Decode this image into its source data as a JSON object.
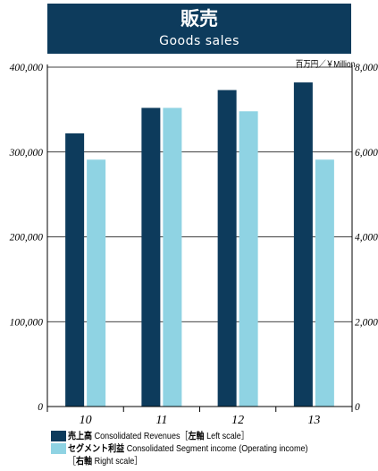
{
  "header": {
    "title": "販売",
    "subtitle": "Goods sales"
  },
  "unit": "百万円／￥Million",
  "chart_data": {
    "type": "bar",
    "categories": [
      "10",
      "11",
      "12",
      "13"
    ],
    "series": [
      {
        "name": "売上高 Consolidated Revenues［左軸 Left scale］",
        "axis": "left",
        "color": "#0d3b5c",
        "values": [
          322000,
          352000,
          373000,
          382000
        ]
      },
      {
        "name": "セグメント利益 Consolidated Segment income (Operating income)［右軸 Right scale］",
        "axis": "right",
        "color": "#8fd3e3",
        "values": [
          5820,
          7040,
          6960,
          5820
        ]
      }
    ],
    "left_axis": {
      "ylim": [
        0,
        400000
      ],
      "ticks": [
        "0",
        "100,000",
        "200,000",
        "300,000",
        "400,000"
      ]
    },
    "right_axis": {
      "ylim": [
        0,
        8000
      ],
      "ticks": [
        "0",
        "2,000",
        "4,000",
        "6,000",
        "8,000"
      ]
    },
    "grid": true,
    "legend_position": "bottom-left"
  },
  "legend": [
    {
      "bold": "売上高",
      "text": " Consolidated Revenues［",
      "bold2": "左軸",
      "text2": " Left scale］",
      "color": "#0d3b5c"
    },
    {
      "bold": "セグメント利益",
      "text": " Consolidated Segment income (Operating income)",
      "color": "#8fd3e3"
    },
    {
      "bold": "",
      "text": "［",
      "bold2": "右軸",
      "text2": " Right scale］",
      "color": ""
    }
  ]
}
